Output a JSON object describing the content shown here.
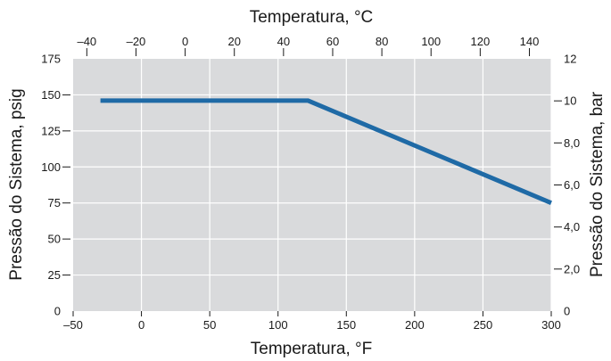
{
  "chart_data": {
    "type": "line",
    "title": "",
    "xlabel_bottom": "Temperatura, °F",
    "xlabel_top": "Temperatura, °C",
    "ylabel_left": "Pressão do Sistema, psig",
    "ylabel_right": "Pressão do Sistema, bar",
    "xlim_f": [
      -50,
      300
    ],
    "ylim_psig": [
      0,
      175
    ],
    "xlim_c": [
      -45.56,
      148.89
    ],
    "ylim_bar": [
      0,
      12
    ],
    "x_ticks_f": [
      -50,
      0,
      50,
      100,
      150,
      200,
      250,
      300
    ],
    "x_tick_labels_f": [
      "–50",
      "0",
      "50",
      "100",
      "150",
      "200",
      "250",
      "300"
    ],
    "y_ticks_psig": [
      0,
      25,
      50,
      75,
      100,
      125,
      150,
      175
    ],
    "y_tick_labels_psig": [
      "0",
      "25",
      "50",
      "75",
      "100",
      "125",
      "150",
      "175"
    ],
    "x_ticks_c": [
      -40,
      -20,
      0,
      20,
      40,
      60,
      80,
      100,
      120,
      140
    ],
    "x_tick_labels_c": [
      "–40",
      "–20",
      "0",
      "20",
      "40",
      "60",
      "80",
      "100",
      "120",
      "140"
    ],
    "y_ticks_bar": [
      0,
      2,
      4,
      6,
      8,
      10,
      12
    ],
    "y_tick_labels_bar": [
      "0",
      "2,0",
      "4,0",
      "6,0",
      "8,0",
      "10",
      "12"
    ],
    "grid": true,
    "colors": {
      "plot_background": "#d9dadc",
      "grid": "#ffffff",
      "line": "#1f6aa6",
      "axis": "#1a1a1a"
    },
    "series": [
      {
        "x": [
          -30,
          122,
          300
        ],
        "y": [
          146,
          146,
          75
        ]
      }
    ]
  }
}
